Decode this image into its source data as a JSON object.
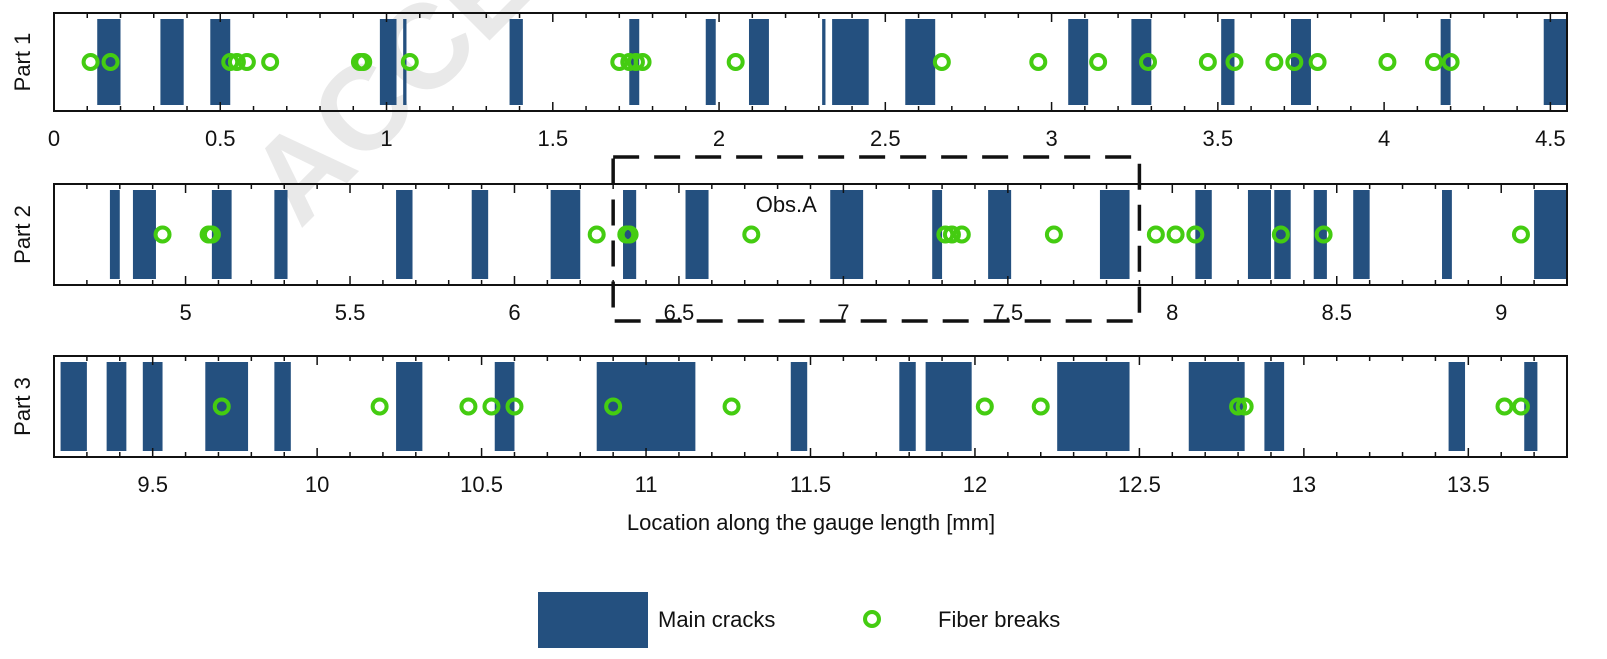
{
  "colors": {
    "crack": "#24507f",
    "fiber": "#44cc11",
    "axis": "#111111",
    "watermark": "#e9e9e9"
  },
  "watermark_text": "ACCEPTED",
  "chart_data": {
    "type": "scatter",
    "xlabel": "Location along the gauge length [mm]",
    "legend": {
      "placement": "bottom-center",
      "cracks_label": "Main cracks",
      "fibers_label": "Fiber breaks"
    },
    "panels": [
      {
        "label": "Part 1",
        "xlim": [
          0,
          4.55
        ],
        "ticks": [
          0,
          0.5,
          1,
          1.5,
          2,
          2.5,
          3,
          3.5,
          4,
          4.5
        ],
        "tick_labels": [
          "0",
          "0.5",
          "1",
          "1.5",
          "2",
          "2.5",
          "3",
          "3.5",
          "4",
          "4.5"
        ],
        "main_cracks": [
          [
            0.13,
            0.2
          ],
          [
            0.32,
            0.39
          ],
          [
            0.47,
            0.53
          ],
          [
            0.98,
            1.03
          ],
          [
            1.05,
            1.06
          ],
          [
            1.37,
            1.41
          ],
          [
            1.73,
            1.76
          ],
          [
            1.96,
            1.99
          ],
          [
            2.09,
            2.15
          ],
          [
            2.31,
            2.32
          ],
          [
            2.34,
            2.45
          ],
          [
            2.56,
            2.65
          ],
          [
            3.05,
            3.11
          ],
          [
            3.24,
            3.3
          ],
          [
            3.51,
            3.55
          ],
          [
            3.72,
            3.78
          ],
          [
            4.17,
            4.2
          ],
          [
            4.48,
            4.58
          ]
        ],
        "fiber_breaks": [
          0.11,
          0.17,
          0.53,
          0.55,
          0.58,
          0.65,
          0.92,
          0.93,
          1.07,
          1.7,
          1.73,
          1.75,
          1.77,
          2.05,
          2.67,
          2.96,
          3.14,
          3.29,
          3.47,
          3.55,
          3.67,
          3.73,
          3.8,
          4.01,
          4.15,
          4.2
        ]
      },
      {
        "label": "Part 2",
        "xlim": [
          4.6,
          9.2
        ],
        "ticks": [
          5,
          5.5,
          6,
          6.5,
          7,
          7.5,
          8,
          8.5,
          9
        ],
        "tick_labels": [
          "5",
          "5.5",
          "6",
          "6.5",
          "7",
          "7.5",
          "8",
          "8.5",
          "9"
        ],
        "main_cracks": [
          [
            4.77,
            4.8
          ],
          [
            4.84,
            4.91
          ],
          [
            5.08,
            5.14
          ],
          [
            5.27,
            5.31
          ],
          [
            5.64,
            5.69
          ],
          [
            5.87,
            5.92
          ],
          [
            6.11,
            6.2
          ],
          [
            6.33,
            6.37
          ],
          [
            6.52,
            6.59
          ],
          [
            6.96,
            7.06
          ],
          [
            7.27,
            7.3
          ],
          [
            7.44,
            7.51
          ],
          [
            7.78,
            7.87
          ],
          [
            8.07,
            8.12
          ],
          [
            8.23,
            8.3
          ],
          [
            8.31,
            8.36
          ],
          [
            8.43,
            8.47
          ],
          [
            8.55,
            8.6
          ],
          [
            8.82,
            8.85
          ],
          [
            9.1,
            9.2
          ]
        ],
        "fiber_breaks": [
          4.93,
          5.07,
          5.08,
          6.25,
          6.34,
          6.35,
          6.72,
          7.31,
          7.33,
          7.36,
          7.64,
          7.95,
          8.01,
          8.07,
          8.33,
          8.46,
          9.06
        ]
      },
      {
        "label": "Part 3",
        "xlim": [
          9.2,
          13.8
        ],
        "ticks": [
          9.5,
          10,
          10.5,
          11,
          11.5,
          12,
          12.5,
          13,
          13.5
        ],
        "tick_labels": [
          "9.5",
          "10",
          "10.5",
          "11",
          "11.5",
          "12",
          "12.5",
          "13",
          "13.5"
        ],
        "main_cracks": [
          [
            9.22,
            9.3
          ],
          [
            9.36,
            9.42
          ],
          [
            9.47,
            9.53
          ],
          [
            9.66,
            9.79
          ],
          [
            9.87,
            9.92
          ],
          [
            10.24,
            10.32
          ],
          [
            10.54,
            10.6
          ],
          [
            10.85,
            11.15
          ],
          [
            11.44,
            11.49
          ],
          [
            11.77,
            11.82
          ],
          [
            11.85,
            11.99
          ],
          [
            12.25,
            12.47
          ],
          [
            12.65,
            12.82
          ],
          [
            12.88,
            12.94
          ],
          [
            13.44,
            13.49
          ],
          [
            13.67,
            13.71
          ]
        ],
        "fiber_breaks": [
          9.71,
          10.19,
          10.46,
          10.53,
          10.6,
          10.9,
          11.26,
          12.03,
          12.2,
          12.8,
          12.82,
          13.61,
          13.66
        ]
      }
    ],
    "annotation": {
      "label": "Obs.A",
      "x_range": [
        6.3,
        7.9
      ],
      "style": "dashed box"
    }
  }
}
